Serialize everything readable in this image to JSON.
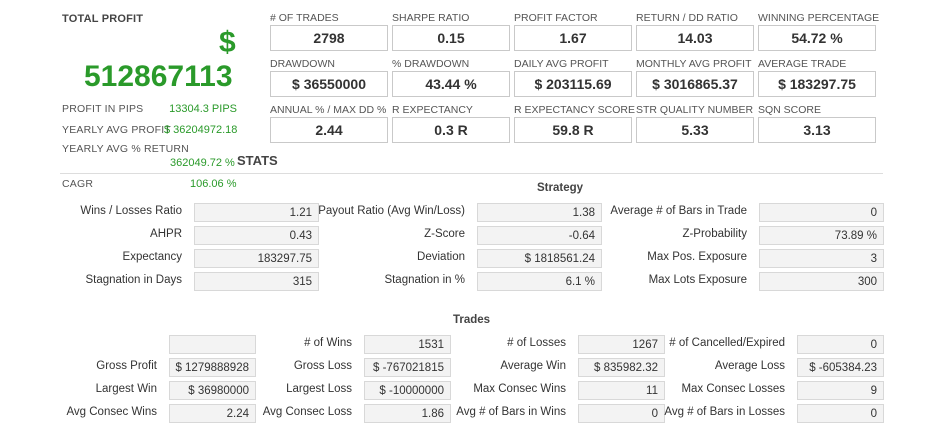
{
  "total_profit": {
    "label": "TOTAL PROFIT",
    "currency_symbol": "$",
    "value": "512867113"
  },
  "summary": [
    {
      "label": "PROFIT IN PIPS",
      "value": "13304.3 PIPS"
    },
    {
      "label": "YEARLY AVG PROFIT",
      "value": "$ 36204972.18"
    },
    {
      "label": "YEARLY AVG % RETURN",
      "value": "362049.72 %"
    },
    {
      "label": "CAGR",
      "value": "106.06 %"
    }
  ],
  "stats_heading": "STATS",
  "metrics": [
    {
      "label": "# OF TRADES",
      "value": "2798"
    },
    {
      "label": "SHARPE RATIO",
      "value": "0.15"
    },
    {
      "label": "PROFIT FACTOR",
      "value": "1.67"
    },
    {
      "label": "RETURN / DD RATIO",
      "value": "14.03"
    },
    {
      "label": "WINNING PERCENTAGE",
      "value": "54.72 %"
    },
    {
      "label": "DRAWDOWN",
      "value": "$ 36550000"
    },
    {
      "label": "% DRAWDOWN",
      "value": "43.44 %"
    },
    {
      "label": "DAILY AVG PROFIT",
      "value": "$ 203115.69"
    },
    {
      "label": "MONTHLY AVG PROFIT",
      "value": "$ 3016865.37"
    },
    {
      "label": "AVERAGE TRADE",
      "value": "$ 183297.75"
    },
    {
      "label": "ANNUAL % / MAX DD %",
      "value": "2.44"
    },
    {
      "label": "R EXPECTANCY",
      "value": "0.3 R"
    },
    {
      "label": "R EXPECTANCY SCORE",
      "value": "59.8 R"
    },
    {
      "label": "STR QUALITY NUMBER",
      "value": "5.33"
    },
    {
      "label": "SQN SCORE",
      "value": "3.13"
    }
  ],
  "strategy": {
    "title": "Strategy",
    "rows": [
      [
        {
          "label": "Wins / Losses Ratio",
          "value": "1.21"
        },
        {
          "label": "Payout Ratio (Avg Win/Loss)",
          "value": "1.38"
        },
        {
          "label": "Average # of Bars in Trade",
          "value": "0"
        }
      ],
      [
        {
          "label": "AHPR",
          "value": "0.43"
        },
        {
          "label": "Z-Score",
          "value": "-0.64"
        },
        {
          "label": "Z-Probability",
          "value": "73.89 %"
        }
      ],
      [
        {
          "label": "Expectancy",
          "value": "183297.75"
        },
        {
          "label": "Deviation",
          "value": "$ 1818561.24"
        },
        {
          "label": "Max Pos. Exposure",
          "value": "3"
        }
      ],
      [
        {
          "label": "Stagnation in Days",
          "value": "315"
        },
        {
          "label": "Stagnation in %",
          "value": "6.1 %"
        },
        {
          "label": "Max Lots Exposure",
          "value": "300"
        }
      ]
    ]
  },
  "trades": {
    "title": "Trades",
    "rows": [
      [
        {
          "label": "",
          "value": ""
        },
        {
          "label": "# of Wins",
          "value": "1531"
        },
        {
          "label": "# of Losses",
          "value": "1267"
        },
        {
          "label": "# of Cancelled/Expired",
          "value": "0"
        }
      ],
      [
        {
          "label": "Gross Profit",
          "value": "$ 1279888928"
        },
        {
          "label": "Gross Loss",
          "value": "$ -767021815"
        },
        {
          "label": "Average Win",
          "value": "$ 835982.32"
        },
        {
          "label": "Average Loss",
          "value": "$ -605384.23"
        }
      ],
      [
        {
          "label": "Largest Win",
          "value": "$ 36980000"
        },
        {
          "label": "Largest Loss",
          "value": "$ -10000000"
        },
        {
          "label": "Max Consec Wins",
          "value": "11"
        },
        {
          "label": "Max Consec Losses",
          "value": "9"
        }
      ],
      [
        {
          "label": "Avg Consec Wins",
          "value": "2.24"
        },
        {
          "label": "Avg Consec Loss",
          "value": "1.86"
        },
        {
          "label": "Avg # of Bars in Wins",
          "value": "0"
        },
        {
          "label": "Avg # of Bars in Losses",
          "value": "0"
        }
      ]
    ]
  },
  "colors": {
    "green": "#2a9a2a",
    "border": "#c9c9c9"
  }
}
